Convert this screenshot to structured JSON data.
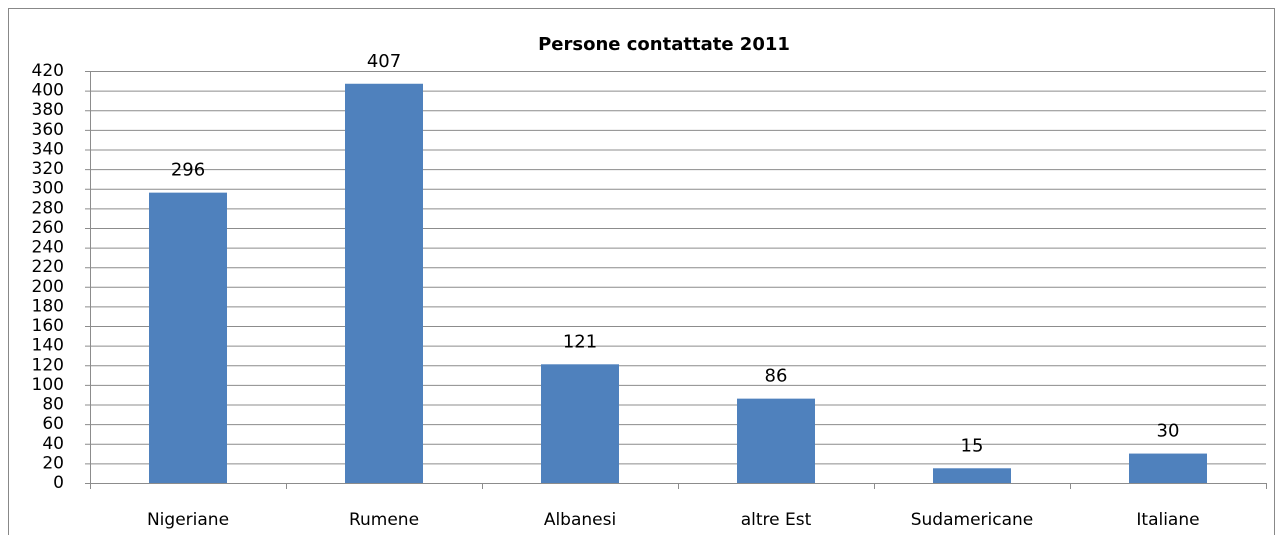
{
  "chart_data": {
    "type": "bar",
    "title": "Persone contattate 2011",
    "categories": [
      "Nigeriane",
      "Rumene",
      "Albanesi",
      "altre Est",
      "Sudamericane",
      "Italiane"
    ],
    "values": [
      296,
      407,
      121,
      86,
      15,
      30
    ],
    "color": "#4f81bd",
    "ylim": [
      0,
      420
    ],
    "yticks": [
      0,
      20,
      40,
      60,
      80,
      100,
      120,
      140,
      160,
      180,
      200,
      220,
      240,
      260,
      280,
      300,
      320,
      340,
      360,
      380,
      400,
      420
    ],
    "grid": true
  }
}
